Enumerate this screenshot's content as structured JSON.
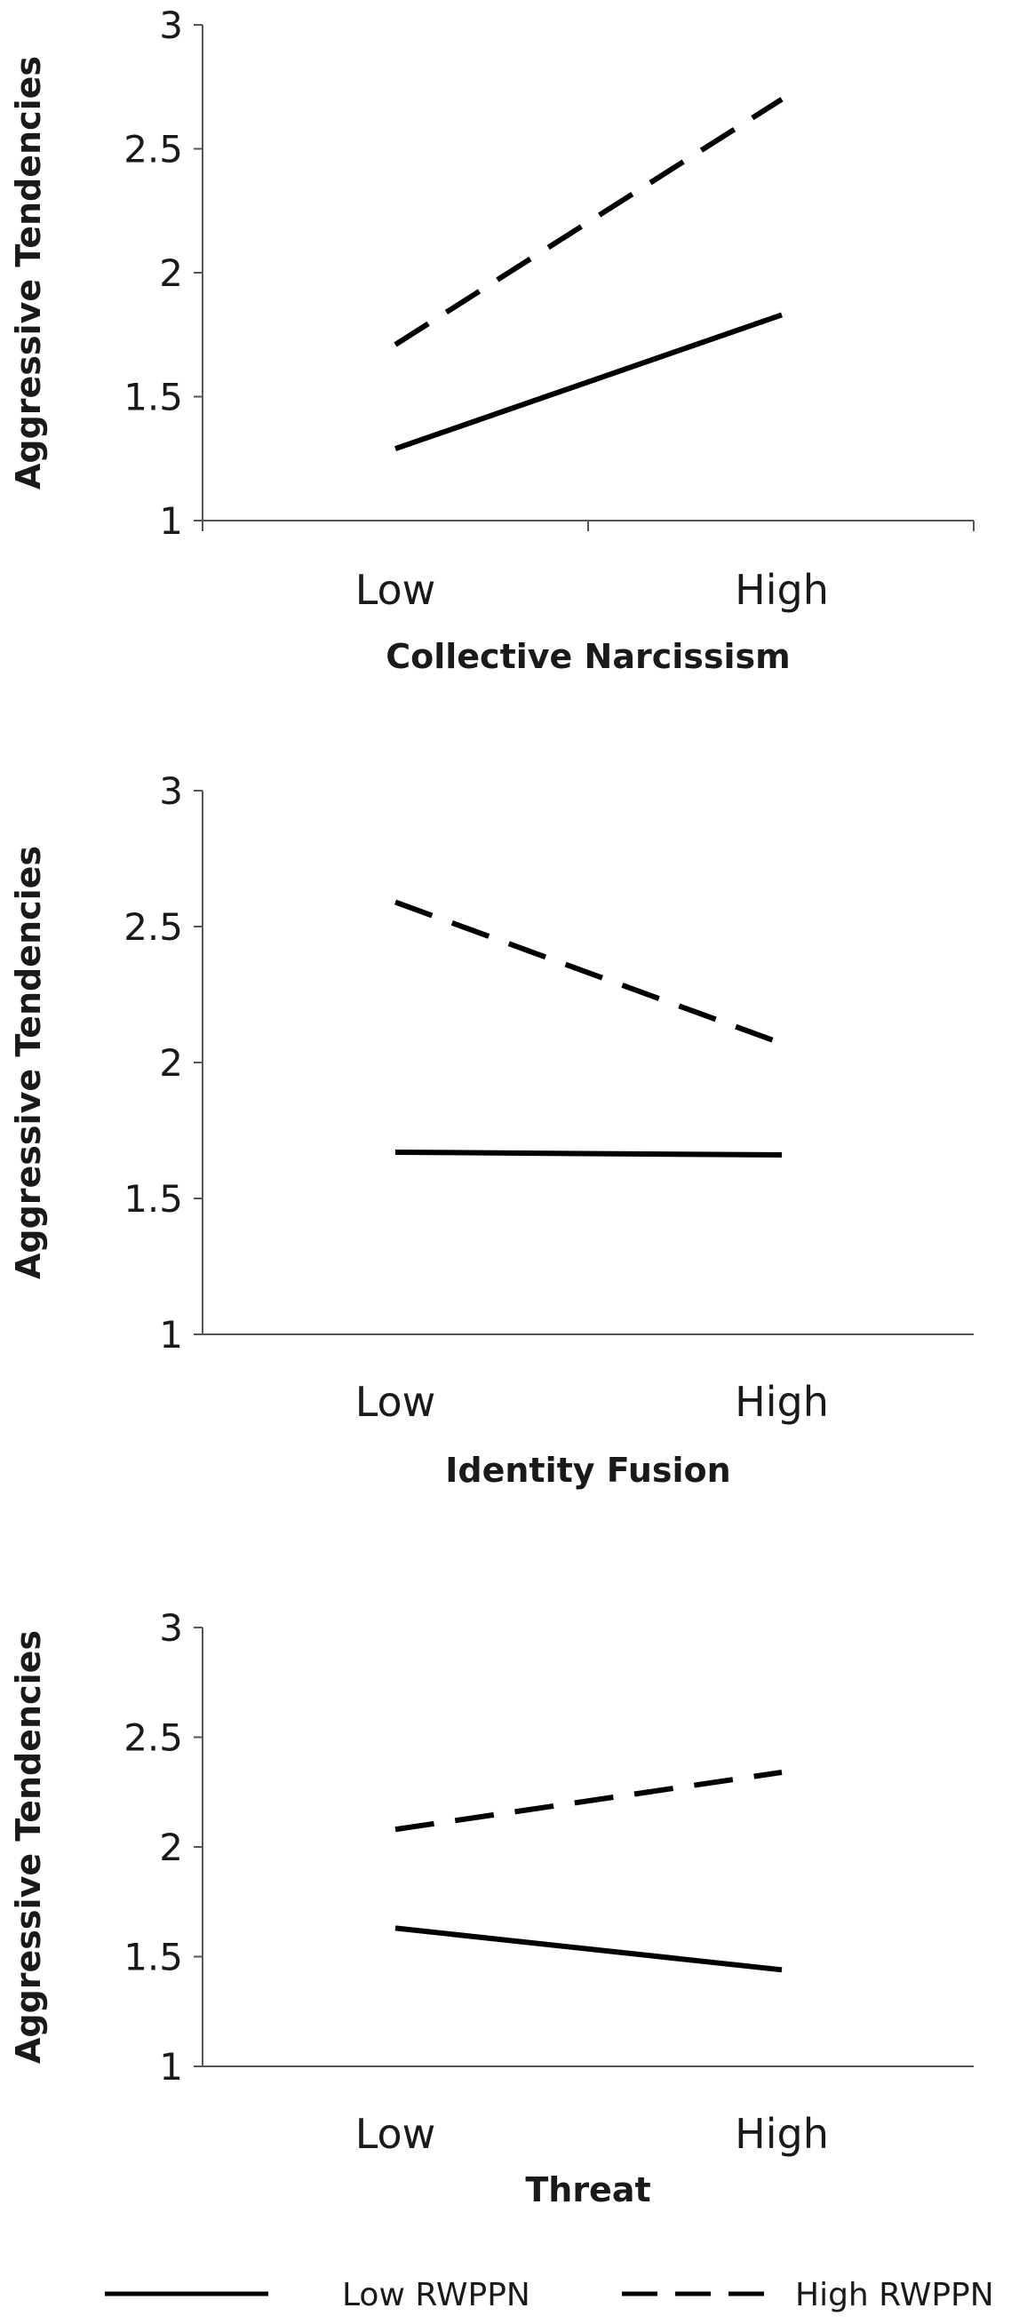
{
  "chart_data": [
    {
      "type": "line",
      "categories": [
        "Low",
        "High"
      ],
      "xlabel": "Collective Narcissism",
      "ylabel": "Aggressive Tendencies",
      "ylim": [
        1,
        3
      ],
      "yticks": [
        "1",
        "1.5",
        "2",
        "2.5",
        "3"
      ],
      "grid": false,
      "series": [
        {
          "name": "Low RWPPN",
          "values": [
            1.29,
            1.83
          ],
          "style": "solid"
        },
        {
          "name": "High RWPPN",
          "values": [
            1.71,
            2.7
          ],
          "style": "dashed"
        }
      ]
    },
    {
      "type": "line",
      "categories": [
        "Low",
        "High"
      ],
      "xlabel": "Identity Fusion",
      "ylabel": "Aggressive Tendencies",
      "ylim": [
        1,
        3
      ],
      "yticks": [
        "1",
        "1.5",
        "2",
        "2.5",
        "3"
      ],
      "grid": false,
      "series": [
        {
          "name": "Low RWPPN",
          "values": [
            1.67,
            1.66
          ],
          "style": "solid"
        },
        {
          "name": "High RWPPN",
          "values": [
            2.59,
            2.07
          ],
          "style": "dashed"
        }
      ]
    },
    {
      "type": "line",
      "categories": [
        "Low",
        "High"
      ],
      "xlabel": "Threat",
      "ylabel": "Aggressive Tendencies",
      "ylim": [
        1,
        3
      ],
      "yticks": [
        "1",
        "1.5",
        "2",
        "2.5",
        "3"
      ],
      "grid": false,
      "series": [
        {
          "name": "Low RWPPN",
          "values": [
            1.63,
            1.44
          ],
          "style": "solid"
        },
        {
          "name": "High RWPPN",
          "values": [
            2.08,
            2.34
          ],
          "style": "dashed"
        }
      ]
    }
  ],
  "legend": {
    "placement": "bottom",
    "items": [
      {
        "label": "Low RWPPN",
        "style": "solid"
      },
      {
        "label": "High RWPPN",
        "style": "dashed"
      }
    ]
  },
  "colors": {
    "line": "#000000",
    "axis": "#555555",
    "text": "#1a1a1a"
  }
}
